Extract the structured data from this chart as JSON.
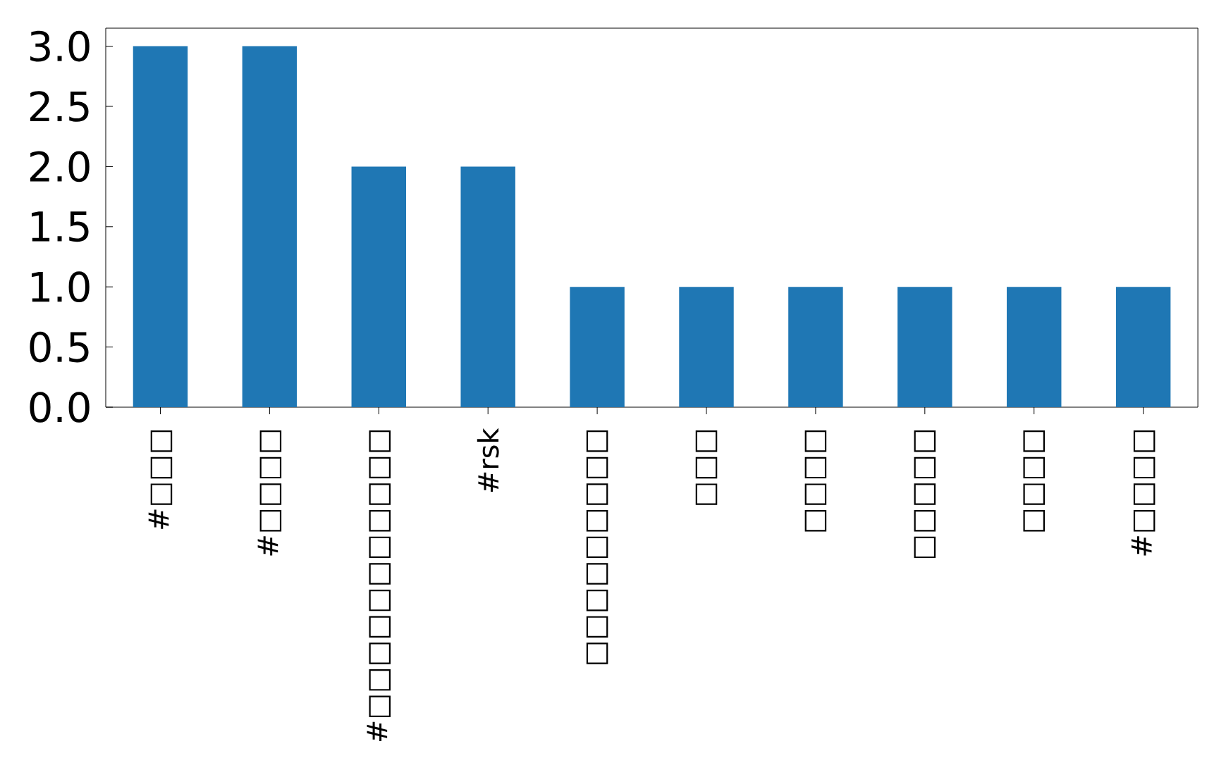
{
  "chart_data": {
    "type": "bar",
    "categories": [
      "#□□□",
      "#□□□□",
      "#□□□□□□□□□□□",
      "#rsk",
      "□□□□□□□□□",
      "□□□",
      "□□□□",
      "□□□□□",
      "□□□□",
      "#□□□□"
    ],
    "values": [
      3,
      3,
      2,
      2,
      1,
      1,
      1,
      1,
      1,
      1
    ],
    "color": "#1f77b4",
    "ylim": [
      0,
      3.15
    ],
    "yticks": [
      {
        "value": 0,
        "label": "0.0"
      },
      {
        "value": 0.5,
        "label": "0.5"
      },
      {
        "value": 1,
        "label": "1.0"
      },
      {
        "value": 1.5,
        "label": "1.5"
      },
      {
        "value": 2,
        "label": "2.0"
      },
      {
        "value": 2.5,
        "label": "2.5"
      },
      {
        "value": 3,
        "label": "3.0"
      }
    ]
  }
}
